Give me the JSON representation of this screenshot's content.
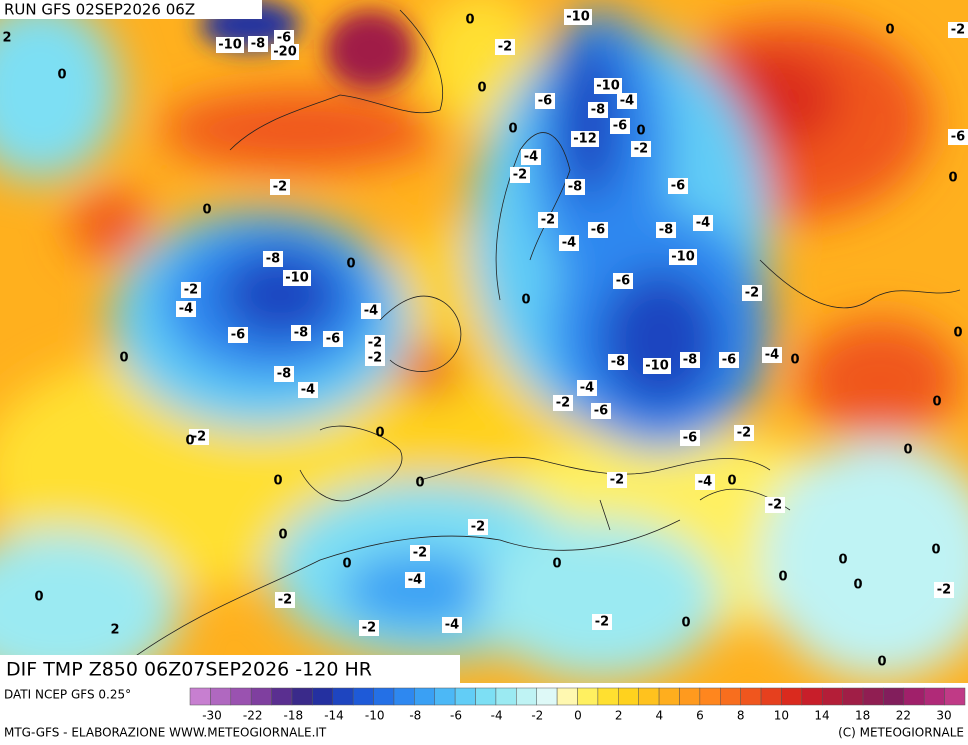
{
  "header": {
    "run": "RUN GFS 02SEP2026 06Z"
  },
  "map": {
    "title": "DIF TMP Z850 06Z07SEP2026 -120 HR",
    "contour_labels": [
      "0",
      "-10",
      "-2",
      "-10",
      "-8",
      "-6",
      "-20",
      "2",
      "0",
      "0",
      "-6",
      "-10",
      "-8",
      "-4",
      "-6",
      "0",
      "-12",
      "0",
      "-2",
      "-4",
      "-2",
      "-8",
      "-6",
      "-2",
      "0",
      "-2",
      "-6",
      "-8",
      "-4",
      "-4",
      "-8",
      "0",
      "-10",
      "-10",
      "-6",
      "-2",
      "-4",
      "-4",
      "0",
      "-2",
      "-6",
      "-8",
      "-6",
      "-2",
      "-2",
      "0",
      "-8",
      "-10",
      "-8",
      "-6",
      "-4",
      "0",
      "-8",
      "-4",
      "-4",
      "-2",
      "-6",
      "0",
      "0",
      "-2",
      "0",
      "-2",
      "-6",
      "0",
      "0",
      "0",
      "-2",
      "-4",
      "0",
      "-2",
      "-2",
      "0",
      "-2",
      "0",
      "0",
      "0",
      "0",
      "-4",
      "0",
      "0",
      "-2",
      "0",
      "-2",
      "2",
      "-2",
      "-4",
      "-2",
      "0",
      "0",
      "-6",
      "0",
      "0",
      "-2",
      "0"
    ]
  },
  "legend": {
    "source": "DATI NCEP GFS 0.25°",
    "colors": [
      "#c77fd0",
      "#b068c0",
      "#9a52b0",
      "#7f3f9f",
      "#5a2f90",
      "#3a2a8a",
      "#2430a0",
      "#1e45c0",
      "#1e5ad8",
      "#2470e6",
      "#2e88f0",
      "#3aa0f4",
      "#4cb8f6",
      "#62cdf6",
      "#7ddff4",
      "#9beaf2",
      "#bff3f4",
      "#def9f7",
      "#fff8b0",
      "#fff060",
      "#ffe030",
      "#ffd21e",
      "#ffc21e",
      "#ffae1e",
      "#ff9a1e",
      "#ff861e",
      "#f86e1e",
      "#f0561e",
      "#e6401e",
      "#da2a1e",
      "#c81e2a",
      "#b41e38",
      "#a01e46",
      "#901e52",
      "#821e5c",
      "#a0206a",
      "#b02a78",
      "#c03a86"
    ],
    "ticks": [
      -30,
      -22,
      -18,
      -14,
      -10,
      -8,
      -6,
      -4,
      -2,
      0,
      2,
      4,
      6,
      8,
      10,
      14,
      18,
      22,
      30
    ]
  },
  "footer": {
    "left": "MTG-GFS - ELABORAZIONE WWW.METEOGIORNALE.IT",
    "right": "(C) METEOGIORNALE"
  }
}
